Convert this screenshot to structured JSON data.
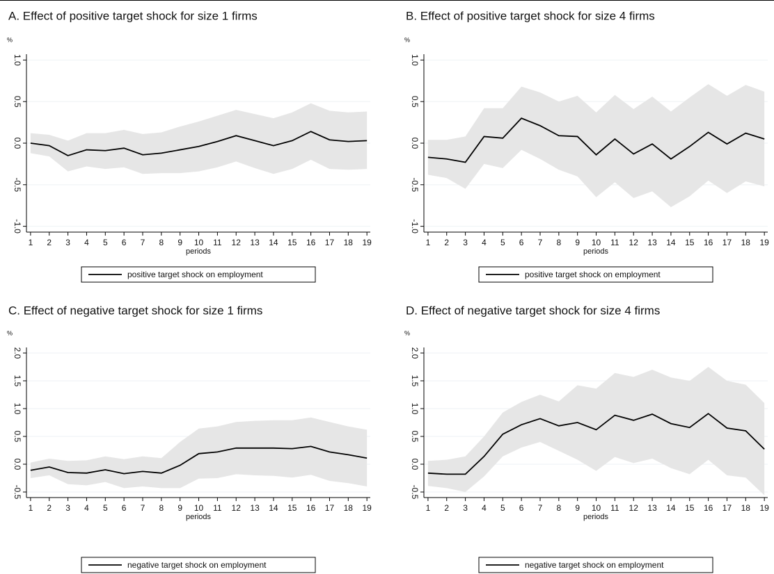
{
  "chart_data": [
    {
      "type": "line",
      "title": "A. Effect of positive target shock for size 1 firms",
      "y_label": "%",
      "x_label": "periods",
      "x": [
        1,
        2,
        3,
        4,
        5,
        6,
        7,
        8,
        9,
        10,
        11,
        12,
        13,
        14,
        15,
        16,
        17,
        18,
        19
      ],
      "xlim": [
        0.78,
        19.18
      ],
      "xticks": [
        1,
        2,
        3,
        4,
        5,
        6,
        7,
        8,
        9,
        10,
        11,
        12,
        13,
        14,
        15,
        16,
        17,
        18,
        19
      ],
      "ylim": [
        -1.07,
        1.07
      ],
      "yticks": [
        {
          "value": -1,
          "label": "-1.0"
        },
        {
          "value": -0.5,
          "label": "-0.5"
        },
        {
          "value": 0,
          "label": "0.0"
        },
        {
          "value": 0.5,
          "label": "0.5"
        },
        {
          "value": 1,
          "label": "1.0"
        }
      ],
      "grid": true,
      "legend": "bottom",
      "series": [
        {
          "name": "positive target shock on employment",
          "color": "#000000",
          "values": [
            0,
            -0.03,
            -0.15,
            -0.08,
            -0.09,
            -0.06,
            -0.14,
            -0.12,
            -0.08,
            -0.04,
            0.02,
            0.09,
            0.03,
            -0.03,
            0.03,
            0.14,
            0.04,
            0.02,
            0.03
          ]
        }
      ],
      "band": {
        "color": "#e6e6e6",
        "upper": [
          0.12,
          0.1,
          0.03,
          0.12,
          0.12,
          0.16,
          0.11,
          0.13,
          0.2,
          0.26,
          0.33,
          0.4,
          0.35,
          0.3,
          0.37,
          0.48,
          0.39,
          0.37,
          0.38
        ],
        "lower": [
          -0.12,
          -0.16,
          -0.34,
          -0.28,
          -0.31,
          -0.29,
          -0.37,
          -0.36,
          -0.36,
          -0.34,
          -0.29,
          -0.22,
          -0.3,
          -0.37,
          -0.31,
          -0.2,
          -0.31,
          -0.32,
          -0.31
        ]
      }
    },
    {
      "type": "line",
      "title": "B. Effect of positive target shock for size 4 firms",
      "y_label": "%",
      "x_label": "periods",
      "x": [
        1,
        2,
        3,
        4,
        5,
        6,
        7,
        8,
        9,
        10,
        11,
        12,
        13,
        14,
        15,
        16,
        17,
        18,
        19
      ],
      "xlim": [
        0.78,
        19.18
      ],
      "xticks": [
        1,
        2,
        3,
        4,
        5,
        6,
        7,
        8,
        9,
        10,
        11,
        12,
        13,
        14,
        15,
        16,
        17,
        18,
        19
      ],
      "ylim": [
        -1.07,
        1.07
      ],
      "yticks": [
        {
          "value": -1,
          "label": "-1.0"
        },
        {
          "value": -0.5,
          "label": "-0.5"
        },
        {
          "value": 0,
          "label": "0.0"
        },
        {
          "value": 0.5,
          "label": "0.5"
        },
        {
          "value": 1,
          "label": "1.0"
        }
      ],
      "grid": true,
      "legend": "bottom",
      "series": [
        {
          "name": "positive target shock on employment",
          "color": "#000000",
          "values": [
            -0.17,
            -0.19,
            -0.23,
            0.08,
            0.06,
            0.3,
            0.21,
            0.09,
            0.08,
            -0.14,
            0.05,
            -0.13,
            -0.01,
            -0.19,
            -0.04,
            0.13,
            -0.01,
            0.12,
            0.05
          ]
        }
      ],
      "band": {
        "color": "#e6e6e6",
        "upper": [
          0.04,
          0.04,
          0.08,
          0.42,
          0.42,
          0.68,
          0.61,
          0.5,
          0.57,
          0.37,
          0.58,
          0.41,
          0.56,
          0.38,
          0.55,
          0.71,
          0.57,
          0.7,
          0.62
        ],
        "lower": [
          -0.38,
          -0.42,
          -0.55,
          -0.25,
          -0.3,
          -0.08,
          -0.19,
          -0.32,
          -0.4,
          -0.65,
          -0.47,
          -0.66,
          -0.58,
          -0.77,
          -0.64,
          -0.45,
          -0.6,
          -0.46,
          -0.52
        ]
      }
    },
    {
      "type": "line",
      "title": "C. Effect of negative target shock for size 1 firms",
      "y_label": "%",
      "x_label": "periods",
      "x": [
        1,
        2,
        3,
        4,
        5,
        6,
        7,
        8,
        9,
        10,
        11,
        12,
        13,
        14,
        15,
        16,
        17,
        18,
        19
      ],
      "xlim": [
        0.78,
        19.18
      ],
      "xticks": [
        1,
        2,
        3,
        4,
        5,
        6,
        7,
        8,
        9,
        10,
        11,
        12,
        13,
        14,
        15,
        16,
        17,
        18,
        19
      ],
      "ylim": [
        -0.6,
        2.1
      ],
      "yticks": [
        {
          "value": -0.5,
          "label": "-0.5"
        },
        {
          "value": 0,
          "label": "0.0"
        },
        {
          "value": 0.5,
          "label": "0.5"
        },
        {
          "value": 1,
          "label": "1.0"
        },
        {
          "value": 1.5,
          "label": "1.5"
        },
        {
          "value": 2,
          "label": "2.0"
        }
      ],
      "grid": true,
      "legend": "bottom",
      "series": [
        {
          "name": "negative target shock on employment",
          "color": "#000000",
          "values": [
            -0.11,
            -0.05,
            -0.15,
            -0.16,
            -0.1,
            -0.17,
            -0.13,
            -0.16,
            -0.02,
            0.19,
            0.22,
            0.29,
            0.29,
            0.29,
            0.28,
            0.32,
            0.22,
            0.17,
            0.11
          ]
        }
      ],
      "band": {
        "color": "#e6e6e6",
        "upper": [
          0.03,
          0.1,
          0.06,
          0.07,
          0.14,
          0.09,
          0.14,
          0.11,
          0.4,
          0.64,
          0.68,
          0.76,
          0.78,
          0.79,
          0.79,
          0.84,
          0.76,
          0.68,
          0.62
        ],
        "lower": [
          -0.25,
          -0.2,
          -0.36,
          -0.38,
          -0.32,
          -0.43,
          -0.4,
          -0.43,
          -0.43,
          -0.26,
          -0.25,
          -0.18,
          -0.2,
          -0.21,
          -0.24,
          -0.19,
          -0.3,
          -0.34,
          -0.4
        ]
      }
    },
    {
      "type": "line",
      "title": "D. Effect of negative target shock for size 4 firms",
      "y_label": "%",
      "x_label": "periods",
      "x": [
        1,
        2,
        3,
        4,
        5,
        6,
        7,
        8,
        9,
        10,
        11,
        12,
        13,
        14,
        15,
        16,
        17,
        18,
        19
      ],
      "xlim": [
        0.78,
        19.18
      ],
      "xticks": [
        1,
        2,
        3,
        4,
        5,
        6,
        7,
        8,
        9,
        10,
        11,
        12,
        13,
        14,
        15,
        16,
        17,
        18,
        19
      ],
      "ylim": [
        -0.6,
        2.1
      ],
      "yticks": [
        {
          "value": -0.5,
          "label": "-0.5"
        },
        {
          "value": 0,
          "label": "0.0"
        },
        {
          "value": 0.5,
          "label": "0.5"
        },
        {
          "value": 1,
          "label": "1.0"
        },
        {
          "value": 1.5,
          "label": "1.5"
        },
        {
          "value": 2,
          "label": "2.0"
        }
      ],
      "grid": true,
      "legend": "bottom",
      "series": [
        {
          "name": "negative target shock on employment",
          "color": "#000000",
          "values": [
            -0.16,
            -0.18,
            -0.18,
            0.14,
            0.54,
            0.71,
            0.82,
            0.69,
            0.75,
            0.62,
            0.88,
            0.79,
            0.9,
            0.73,
            0.66,
            0.91,
            0.65,
            0.6,
            0.27
          ]
        }
      ],
      "band": {
        "color": "#e6e6e6",
        "upper": [
          0.06,
          0.08,
          0.14,
          0.5,
          0.93,
          1.12,
          1.25,
          1.13,
          1.42,
          1.36,
          1.64,
          1.57,
          1.7,
          1.56,
          1.5,
          1.75,
          1.5,
          1.43,
          1.1
        ],
        "lower": [
          -0.39,
          -0.43,
          -0.5,
          -0.22,
          0.14,
          0.3,
          0.4,
          0.24,
          0.08,
          -0.12,
          0.13,
          0.02,
          0.1,
          -0.07,
          -0.18,
          0.08,
          -0.2,
          -0.24,
          -0.56
        ]
      }
    }
  ]
}
